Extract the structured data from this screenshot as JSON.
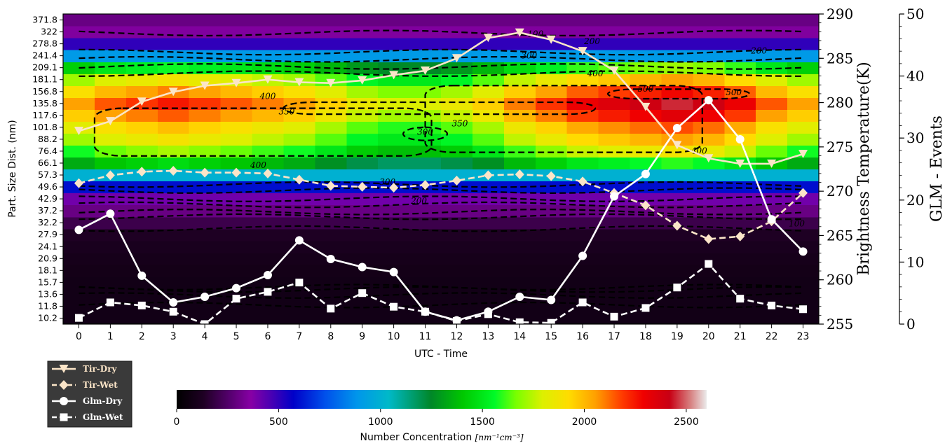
{
  "chart_data": {
    "type": "heatmap",
    "xlabel": "UTC - Time",
    "ylabel": "Part. Size Dist. (nm)",
    "y2label": "Brightness Temperature(K)",
    "y3label": "GLM - Events",
    "colorbar_label_text": "Number Concentration ",
    "colorbar_label_units": "[nm⁻¹cm⁻³]",
    "x": [
      0,
      1,
      2,
      3,
      4,
      5,
      6,
      7,
      8,
      9,
      10,
      11,
      12,
      13,
      14,
      15,
      16,
      17,
      18,
      19,
      20,
      21,
      22,
      23
    ],
    "xlim": [
      -0.5,
      23.5
    ],
    "size_bins": [
      "10.2",
      "11.8",
      "13.6",
      "15.7",
      "18.1",
      "20.9",
      "24.1",
      "27.9",
      "32.2",
      "37.2",
      "42.9",
      "49.6",
      "57.3",
      "66.1",
      "76.4",
      "88.2",
      "101.8",
      "117.6",
      "135.8",
      "156.8",
      "181.1",
      "209.1",
      "241.4",
      "278.8",
      "322",
      "371.8"
    ],
    "y2lim": [
      255,
      290
    ],
    "y2ticks": [
      255,
      260,
      265,
      270,
      275,
      280,
      285,
      290
    ],
    "y3lim": [
      0,
      50
    ],
    "y3ticks": [
      0,
      10,
      20,
      30,
      40,
      50
    ],
    "colorbar_ticks": [
      0,
      500,
      1000,
      1500,
      2000,
      2500
    ],
    "colorbar_range": [
      0,
      2600
    ],
    "heatmap_profile": [
      80,
      80,
      80,
      80,
      85,
      95,
      110,
      130,
      200,
      300,
      400,
      600,
      1000,
      1400,
      1650,
      1800,
      1900,
      2050,
      2150,
      2000,
      1800,
      1500,
      900,
      500,
      350,
      300
    ],
    "heatmap_hour_peaks": [
      2050,
      2150,
      2200,
      2250,
      2200,
      2150,
      2100,
      2050,
      1950,
      1850,
      1800,
      1800,
      1850,
      1950,
      2100,
      2200,
      2300,
      2350,
      2400,
      2450,
      2400,
      2300,
      2150,
      2050
    ],
    "contour_labels": [
      "100",
      "200",
      "280",
      "300",
      "300",
      "350",
      "350",
      "400",
      "400",
      "400",
      "500",
      "500",
      "300",
      "200",
      "100",
      "400"
    ],
    "series": [
      {
        "name": "Tir-Dry",
        "axis": "temperature",
        "color": "#fbe5c8",
        "marker": "triangle-down",
        "dashed": false,
        "values": [
          276.8,
          277.9,
          280.1,
          281.2,
          281.9,
          282.2,
          282.6,
          282.3,
          282.2,
          282.5,
          283.1,
          283.6,
          285.0,
          287.3,
          287.9,
          287.1,
          285.8,
          283.6,
          279.5,
          275.2,
          273.7,
          273.1,
          273.1,
          274.2
        ]
      },
      {
        "name": "Tir-Wet",
        "axis": "temperature",
        "color": "#fbe5c8",
        "marker": "diamond",
        "dashed": true,
        "values": [
          270.9,
          271.8,
          272.2,
          272.3,
          272.1,
          272.1,
          272.0,
          271.3,
          270.6,
          270.5,
          270.4,
          270.7,
          271.2,
          271.8,
          271.9,
          271.7,
          271.1,
          269.8,
          268.4,
          266.1,
          264.6,
          264.9,
          266.6,
          269.8
        ]
      },
      {
        "name": "Glm-Dry",
        "axis": "events",
        "color": "#ffffff",
        "marker": "circle",
        "dashed": false,
        "values": [
          15.2,
          17.8,
          7.8,
          3.5,
          4.4,
          5.8,
          7.9,
          13.5,
          10.5,
          9.2,
          8.4,
          2.0,
          0.6,
          2.0,
          4.4,
          3.9,
          11.0,
          20.6,
          24.2,
          31.6,
          36.1,
          29.8,
          16.9,
          11.7
        ]
      },
      {
        "name": "Glm-Wet",
        "axis": "events",
        "color": "#ffffff",
        "marker": "square",
        "dashed": true,
        "values": [
          1.0,
          3.5,
          3.0,
          2.0,
          0.0,
          4.1,
          5.2,
          6.7,
          2.5,
          5.0,
          2.8,
          2.0,
          0.5,
          1.6,
          0.3,
          0.2,
          3.5,
          1.2,
          2.6,
          5.9,
          9.7,
          4.1,
          3.0,
          2.4
        ]
      }
    ]
  }
}
